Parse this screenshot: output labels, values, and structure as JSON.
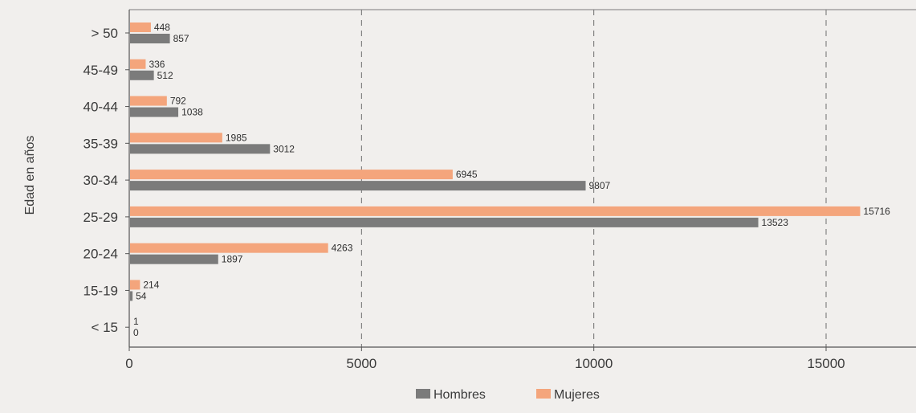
{
  "chart_data": {
    "type": "bar",
    "orientation": "horizontal",
    "categories": [
      "> 50",
      "45-49",
      "40-44",
      "35-39",
      "30-34",
      "25-29",
      "20-24",
      "15-19",
      "< 15"
    ],
    "series": [
      {
        "name": "Mujeres",
        "color": "#f4a57c",
        "values": [
          448,
          336,
          792,
          1985,
          6945,
          15716,
          4263,
          214,
          1
        ]
      },
      {
        "name": "Hombres",
        "color": "#7b7b7b",
        "values": [
          857,
          512,
          1038,
          3012,
          9807,
          13523,
          1897,
          54,
          0
        ]
      }
    ],
    "ylabel": "Edad en años",
    "xlabel": "",
    "xlim": [
      0,
      18000
    ],
    "xticks": [
      0,
      5000,
      10000,
      15000
    ],
    "legend": {
      "position": "bottom",
      "entries": [
        "Hombres",
        "Mujeres"
      ]
    },
    "grid": "vertical dashed"
  }
}
